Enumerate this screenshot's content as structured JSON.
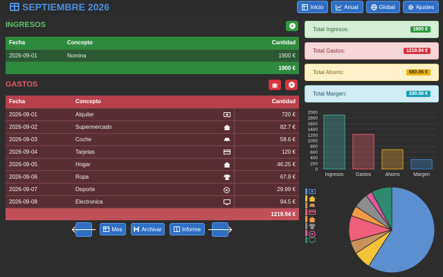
{
  "header": {
    "title": "SEPTIEMBRE 2026"
  },
  "nav": [
    {
      "label": "Inicio",
      "icon": "table-icon"
    },
    {
      "label": "Anual",
      "icon": "chart-icon"
    },
    {
      "label": "Global",
      "icon": "globe-icon"
    },
    {
      "label": "Ajustes",
      "icon": "gear-icon"
    }
  ],
  "ingresos": {
    "title": "INGRESOS",
    "columns": [
      "Fecha",
      "Concepto",
      "Cantidad"
    ],
    "rows": [
      {
        "fecha": "2026-09-01",
        "concepto": "Nomina",
        "cantidad": "1900 €"
      }
    ],
    "total": "1900 €"
  },
  "gastos": {
    "title": "GASTOS",
    "columns": [
      "Fecha",
      "Concepto",
      "Cantidad"
    ],
    "rows": [
      {
        "fecha": "2026-09-01",
        "concepto": "Alquiler",
        "icon": "money-icon",
        "cantidad": "720 €"
      },
      {
        "fecha": "2026-09-02",
        "concepto": "Supermercado",
        "icon": "home-icon",
        "cantidad": "82.7 €"
      },
      {
        "fecha": "2026-09-03",
        "concepto": "Coche",
        "icon": "car-icon",
        "cantidad": "58.6 €"
      },
      {
        "fecha": "2026-09-04",
        "concepto": "Tarjetas",
        "icon": "credit-card-icon",
        "cantidad": "120 €"
      },
      {
        "fecha": "2026-09-05",
        "concepto": "Hogar",
        "icon": "home-icon",
        "cantidad": "46.25 €"
      },
      {
        "fecha": "2026-09-06",
        "concepto": "Ropa",
        "icon": "shirt-icon",
        "cantidad": "67.9 €"
      },
      {
        "fecha": "2026-09-07",
        "concepto": "Deporte",
        "icon": "ball-icon",
        "cantidad": "29.99 €"
      },
      {
        "fecha": "2026-09-08",
        "concepto": "Electronica",
        "icon": "monitor-icon",
        "cantidad": "94.5 €"
      }
    ],
    "total": "1219.94 €"
  },
  "bottom": {
    "mes": "Mes",
    "archivar": "Archivar",
    "informe": "Informe"
  },
  "summary": {
    "ingresos_label": "Total Ingresos:",
    "ingresos_value": "1900 €",
    "gastos_label": "Total Gastos:",
    "gastos_value": "1219.94 €",
    "ahorro_label": "Total Ahorro:",
    "ahorro_value": "680.06 €",
    "margen_label": "Total Margen:",
    "margen_value": "330.06 €"
  },
  "colors": {
    "ingresos": "#2e9a3e",
    "gastos": "#d9333f",
    "ahorro": "#f0b400",
    "margen": "#17a2b8",
    "accent": "#2f6fc4"
  },
  "chart_data": [
    {
      "type": "bar",
      "categories": [
        "Ingresos",
        "Gastos",
        "Ahorro",
        "Margen"
      ],
      "values": [
        1900,
        1219.94,
        680.06,
        330.06
      ],
      "colors": [
        "#3fa8a0",
        "#e0596a",
        "#d9a030",
        "#3d7fc4"
      ],
      "ylim": [
        0,
        2000
      ],
      "yticks": [
        0,
        200,
        400,
        600,
        800,
        1000,
        1200,
        1400,
        1600,
        1800,
        2000
      ],
      "grid": true
    },
    {
      "type": "pie",
      "categories": [
        "Alquiler",
        "Supermercado",
        "Coche",
        "Tarjetas",
        "Hogar",
        "Ropa",
        "Deporte",
        "Electronica"
      ],
      "values": [
        720,
        82.7,
        58.6,
        120,
        46.25,
        67.9,
        29.99,
        94.5
      ],
      "colors": [
        "#5b8fcf",
        "#f5c33b",
        "#c8925a",
        "#ef5e7a",
        "#f39a4a",
        "#8c8c8c",
        "#e05aa0",
        "#2e8b6e"
      ],
      "legend_icons": [
        "money-icon",
        "home-icon",
        "car-icon",
        "credit-card-icon",
        "home-icon",
        "shirt-icon",
        "ball-icon",
        "monitor-icon"
      ],
      "legend": "left"
    }
  ]
}
